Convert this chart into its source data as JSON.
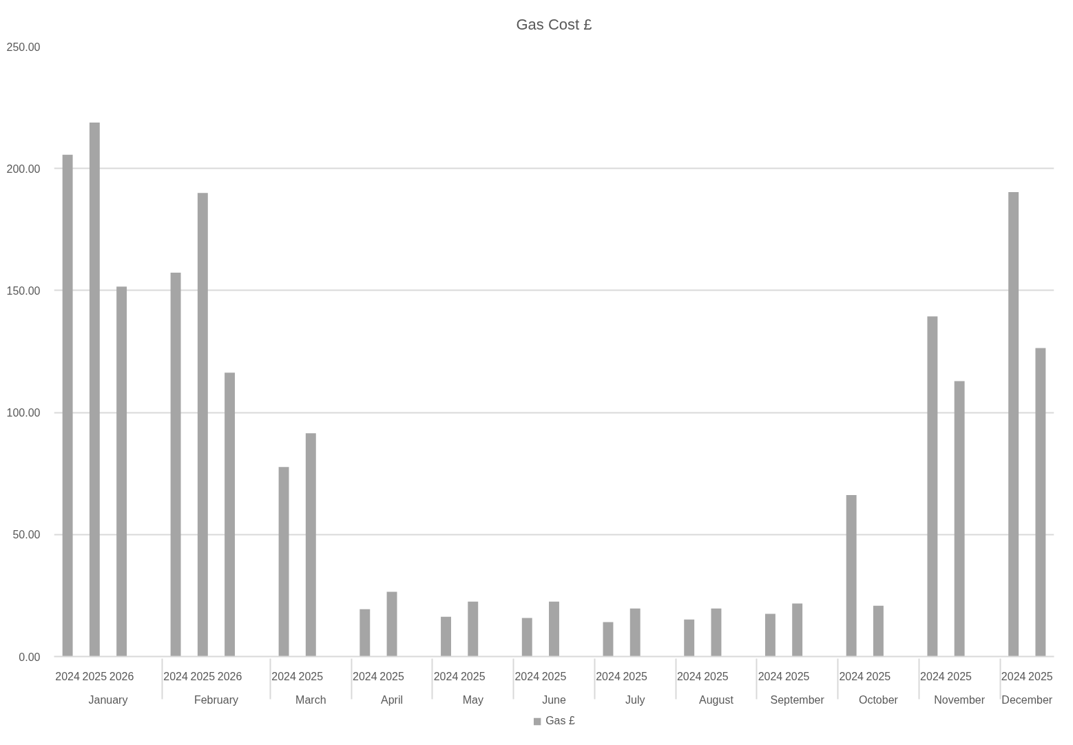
{
  "chart_data": {
    "type": "bar",
    "title": "Gas Cost £",
    "categories": [
      [
        "January",
        "2024"
      ],
      [
        null,
        "2025"
      ],
      [
        null,
        "2026"
      ],
      [
        null,
        null
      ],
      [
        "February",
        "2024"
      ],
      [
        null,
        "2025"
      ],
      [
        null,
        "2026"
      ],
      [
        null,
        null
      ],
      [
        "March",
        "2024"
      ],
      [
        null,
        "2025"
      ],
      [
        null,
        null
      ],
      [
        "April",
        "2024"
      ],
      [
        null,
        "2025"
      ],
      [
        null,
        null
      ],
      [
        "May",
        "2024"
      ],
      [
        null,
        "2025"
      ],
      [
        null,
        null
      ],
      [
        "June",
        "2024"
      ],
      [
        null,
        "2025"
      ],
      [
        null,
        null
      ],
      [
        "July",
        "2024"
      ],
      [
        null,
        "2025"
      ],
      [
        null,
        null
      ],
      [
        "August",
        "2024"
      ],
      [
        null,
        "2025"
      ],
      [
        null,
        null
      ],
      [
        "September",
        "2024"
      ],
      [
        null,
        "2025"
      ],
      [
        null,
        null
      ],
      [
        "October",
        "2024"
      ],
      [
        null,
        "2025"
      ],
      [
        null,
        null
      ],
      [
        "November",
        "2024"
      ],
      [
        null,
        "2025"
      ],
      [
        null,
        null
      ],
      [
        "December",
        "2024"
      ],
      [
        null,
        "2025"
      ]
    ],
    "series": [
      {
        "name": "Gas £",
        "color": "#a5a5a5",
        "values": [
          205.6,
          218.8,
          151.6,
          null,
          157.3,
          190.0,
          116.3,
          null,
          77.7,
          91.5,
          null,
          19.4,
          26.5,
          null,
          16.3,
          22.5,
          null,
          15.8,
          22.5,
          null,
          14.1,
          19.7,
          null,
          15.2,
          19.7,
          null,
          17.5,
          21.7,
          null,
          66.2,
          20.8,
          null,
          139.4,
          112.9,
          null,
          190.3,
          126.4
        ]
      }
    ],
    "ylim": [
      0,
      250
    ],
    "yticks": [
      {
        "value": 0,
        "label": "0.00"
      },
      {
        "value": 50,
        "label": "50.00"
      },
      {
        "value": 100,
        "label": "100.00"
      },
      {
        "value": 150,
        "label": "150.00"
      },
      {
        "value": 200,
        "label": "200.00"
      },
      {
        "value": 250,
        "label": "250.00"
      }
    ],
    "grid": "y",
    "legend": "bottom"
  }
}
